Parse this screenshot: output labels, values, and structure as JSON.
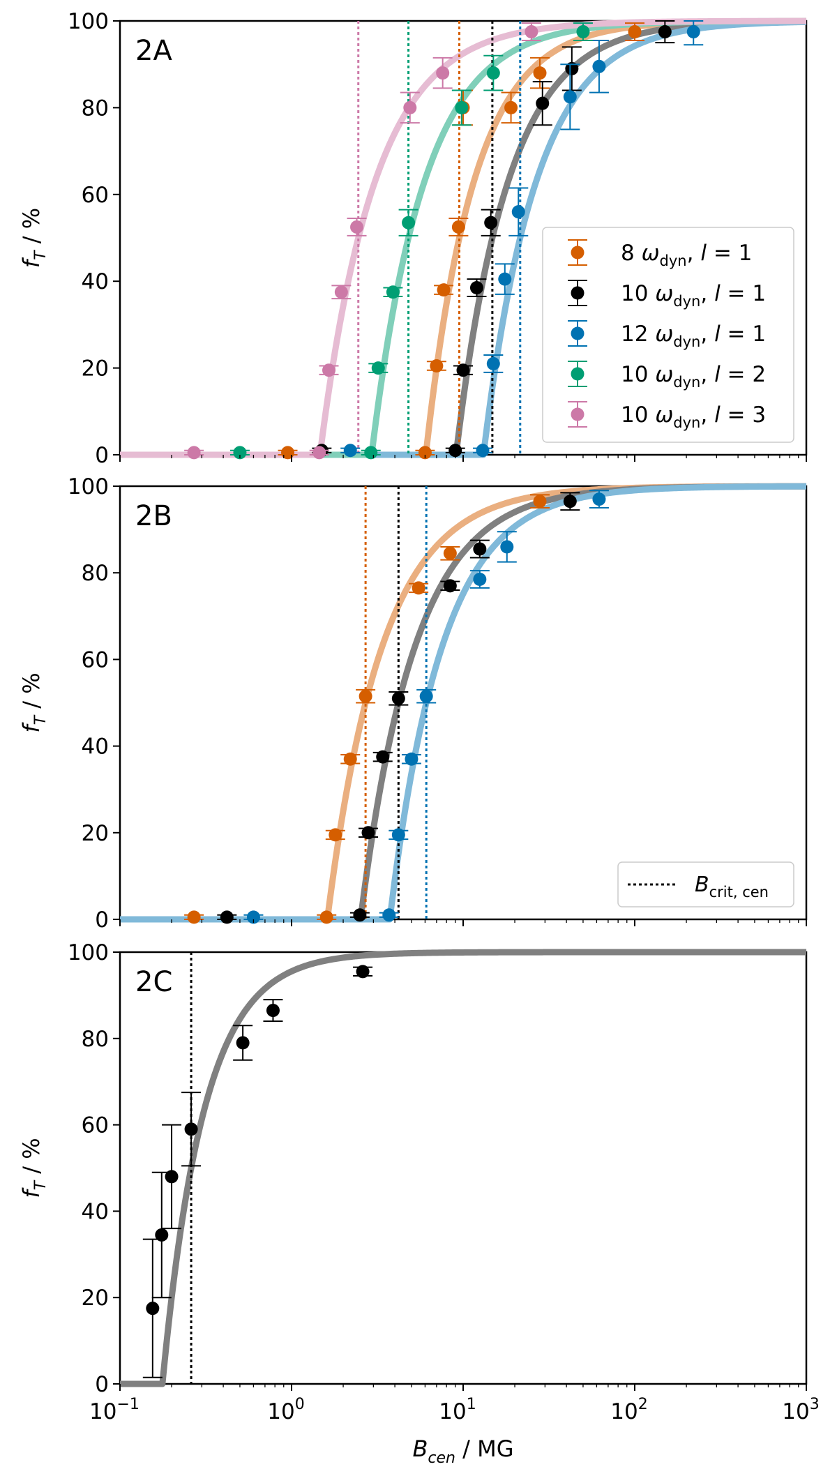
{
  "figure": {
    "x_axis": {
      "label_main": "B",
      "label_sub": "cen",
      "label_unit": " / MG",
      "scale": "log",
      "range": [
        0.1,
        1000
      ],
      "tick_labels": [
        {
          "value": 0.1,
          "base": "10",
          "exp": "−1"
        },
        {
          "value": 1,
          "base": "10",
          "exp": "0"
        },
        {
          "value": 10,
          "base": "10",
          "exp": "1"
        },
        {
          "value": 100,
          "base": "10",
          "exp": "2"
        },
        {
          "value": 1000,
          "base": "10",
          "exp": "3"
        }
      ]
    },
    "y_axis": {
      "label_main": "f",
      "label_sub": "T",
      "label_unit": " / %",
      "range": [
        0,
        100
      ],
      "ticks": [
        0,
        20,
        40,
        60,
        80,
        100
      ],
      "tick_labels": [
        "0",
        "20",
        "40",
        "60",
        "80",
        "100"
      ]
    },
    "colors": {
      "orange": "#d55e00",
      "black": "#000000",
      "blue": "#0072b2",
      "green": "#009e73",
      "pink": "#cc79a7"
    }
  },
  "chart_data": [
    {
      "type": "scatter",
      "panel_label": "2A",
      "xscale": "log",
      "xlim": [
        0.1,
        1000
      ],
      "ylim": [
        0,
        100
      ],
      "legend": {
        "placement": "center-right"
      },
      "series": [
        {
          "name": "8 ω_dyn, l = 1",
          "legend_parts": {
            "num": "8",
            "omega": "ω",
            "sub": "dyn",
            "l": "l",
            "eq": " = 1"
          },
          "color": "#d55e00",
          "critical_value": 9.5,
          "points": [
            {
              "x": 0.95,
              "y": 0.5
            },
            {
              "x": 6.0,
              "y": 0.5
            },
            {
              "x": 7.0,
              "y": 20.5
            },
            {
              "x": 7.7,
              "y": 38
            },
            {
              "x": 9.4,
              "y": 52.5
            },
            {
              "x": 10.0,
              "y": 80
            },
            {
              "x": 19,
              "y": 80
            },
            {
              "x": 28,
              "y": 88
            },
            {
              "x": 100,
              "y": 97.5
            }
          ],
          "yerr": [
            0.5,
            0.5,
            1,
            1,
            2,
            4,
            3.5,
            3.5,
            2
          ]
        },
        {
          "name": "10 ω_dyn, l = 1",
          "legend_parts": {
            "num": "10",
            "omega": "ω",
            "sub": "dyn",
            "l": "l",
            "eq": " = 1"
          },
          "color": "#000000",
          "critical_value": 14.8,
          "points": [
            {
              "x": 1.5,
              "y": 1
            },
            {
              "x": 9.0,
              "y": 1
            },
            {
              "x": 10.0,
              "y": 19.5
            },
            {
              "x": 12.0,
              "y": 38.5
            },
            {
              "x": 14.5,
              "y": 53.5
            },
            {
              "x": 29,
              "y": 81
            },
            {
              "x": 43,
              "y": 89
            },
            {
              "x": 150,
              "y": 97.5
            }
          ],
          "yerr": [
            0.5,
            0.5,
            1,
            2,
            3,
            5,
            5,
            2.5
          ]
        },
        {
          "name": "12 ω_dyn, l = 1",
          "legend_parts": {
            "num": "12",
            "omega": "ω",
            "sub": "dyn",
            "l": "l",
            "eq": " = 1"
          },
          "color": "#0072b2",
          "critical_value": 21.5,
          "points": [
            {
              "x": 2.2,
              "y": 1
            },
            {
              "x": 13.0,
              "y": 1
            },
            {
              "x": 15.0,
              "y": 21
            },
            {
              "x": 17.5,
              "y": 40.5
            },
            {
              "x": 21.0,
              "y": 56
            },
            {
              "x": 42,
              "y": 82.5
            },
            {
              "x": 62,
              "y": 89.5
            },
            {
              "x": 220,
              "y": 97.5
            }
          ],
          "yerr": [
            0.5,
            0.5,
            2,
            3.5,
            5.5,
            7.5,
            6,
            3
          ]
        },
        {
          "name": "10 ω_dyn, l = 2",
          "legend_parts": {
            "num": "10",
            "omega": "ω",
            "sub": "dyn",
            "l": "l",
            "eq": " = 2"
          },
          "color": "#009e73",
          "critical_value": 4.8,
          "points": [
            {
              "x": 0.5,
              "y": 0.5
            },
            {
              "x": 2.9,
              "y": 0.5
            },
            {
              "x": 3.2,
              "y": 20
            },
            {
              "x": 3.9,
              "y": 37.5
            },
            {
              "x": 4.8,
              "y": 53.5
            },
            {
              "x": 9.8,
              "y": 80
            },
            {
              "x": 15,
              "y": 88
            },
            {
              "x": 50,
              "y": 97.5
            }
          ],
          "yerr": [
            0.5,
            0.5,
            1,
            1,
            3,
            4,
            4,
            2
          ]
        },
        {
          "name": "10 ω_dyn, l = 3",
          "legend_parts": {
            "num": "10",
            "omega": "ω",
            "sub": "dyn",
            "l": "l",
            "eq": " = 3"
          },
          "color": "#cc79a7",
          "critical_value": 2.45,
          "points": [
            {
              "x": 0.27,
              "y": 0.5
            },
            {
              "x": 1.45,
              "y": 0.5
            },
            {
              "x": 1.65,
              "y": 19.5
            },
            {
              "x": 1.95,
              "y": 37.5
            },
            {
              "x": 2.4,
              "y": 52.5
            },
            {
              "x": 4.9,
              "y": 80
            },
            {
              "x": 7.6,
              "y": 88
            },
            {
              "x": 25,
              "y": 97.5
            }
          ],
          "yerr": [
            0.5,
            0.5,
            1,
            1.5,
            2,
            3.5,
            3.5,
            2
          ]
        }
      ]
    },
    {
      "type": "scatter",
      "panel_label": "2B",
      "xscale": "log",
      "xlim": [
        0.1,
        1000
      ],
      "ylim": [
        0,
        100
      ],
      "legend": {
        "placement": "bottom-right",
        "entries": [
          {
            "label_main": "B",
            "label_sub": "crit, cen",
            "style": "dotted",
            "color": "#000000"
          }
        ]
      },
      "series": [
        {
          "color": "#d55e00",
          "critical_value": 2.7,
          "points": [
            {
              "x": 0.27,
              "y": 0.5
            },
            {
              "x": 1.6,
              "y": 0.5
            },
            {
              "x": 1.8,
              "y": 19.5
            },
            {
              "x": 2.2,
              "y": 37
            },
            {
              "x": 2.7,
              "y": 51.5
            },
            {
              "x": 5.5,
              "y": 76.5
            },
            {
              "x": 8.4,
              "y": 84.5
            },
            {
              "x": 28,
              "y": 96.5
            }
          ],
          "yerr": [
            0.5,
            0.5,
            1,
            1,
            1.5,
            1,
            1.5,
            1.5
          ]
        },
        {
          "color": "#000000",
          "critical_value": 4.2,
          "points": [
            {
              "x": 0.42,
              "y": 0.5
            },
            {
              "x": 2.5,
              "y": 1
            },
            {
              "x": 2.8,
              "y": 20
            },
            {
              "x": 3.4,
              "y": 37.5
            },
            {
              "x": 4.2,
              "y": 51
            },
            {
              "x": 8.4,
              "y": 77
            },
            {
              "x": 12.5,
              "y": 85.5
            },
            {
              "x": 42,
              "y": 96.5
            }
          ],
          "yerr": [
            0.5,
            0.5,
            1,
            1,
            1.5,
            1,
            2,
            2
          ]
        },
        {
          "color": "#0072b2",
          "critical_value": 6.1,
          "points": [
            {
              "x": 0.6,
              "y": 0.5
            },
            {
              "x": 3.7,
              "y": 1
            },
            {
              "x": 4.2,
              "y": 19.5
            },
            {
              "x": 5.0,
              "y": 37
            },
            {
              "x": 6.1,
              "y": 51.5
            },
            {
              "x": 12.5,
              "y": 78.5
            },
            {
              "x": 18,
              "y": 86
            },
            {
              "x": 62,
              "y": 97
            }
          ],
          "yerr": [
            0.5,
            0.5,
            1,
            1,
            1.5,
            2,
            3.5,
            2
          ]
        }
      ]
    },
    {
      "type": "scatter",
      "panel_label": "2C",
      "xscale": "log",
      "xlim": [
        0.1,
        1000
      ],
      "ylim": [
        0,
        100
      ],
      "series": [
        {
          "color": "#000000",
          "critical_value": 0.26,
          "points": [
            {
              "x": 0.155,
              "y": 17.5
            },
            {
              "x": 0.175,
              "y": 34.5
            },
            {
              "x": 0.2,
              "y": 48
            },
            {
              "x": 0.26,
              "y": 59
            },
            {
              "x": 0.52,
              "y": 79
            },
            {
              "x": 0.78,
              "y": 86.5
            },
            {
              "x": 2.6,
              "y": 95.5
            }
          ],
          "yerr": [
            16,
            14.5,
            12,
            8.5,
            4,
            2.5,
            1
          ]
        }
      ]
    }
  ]
}
